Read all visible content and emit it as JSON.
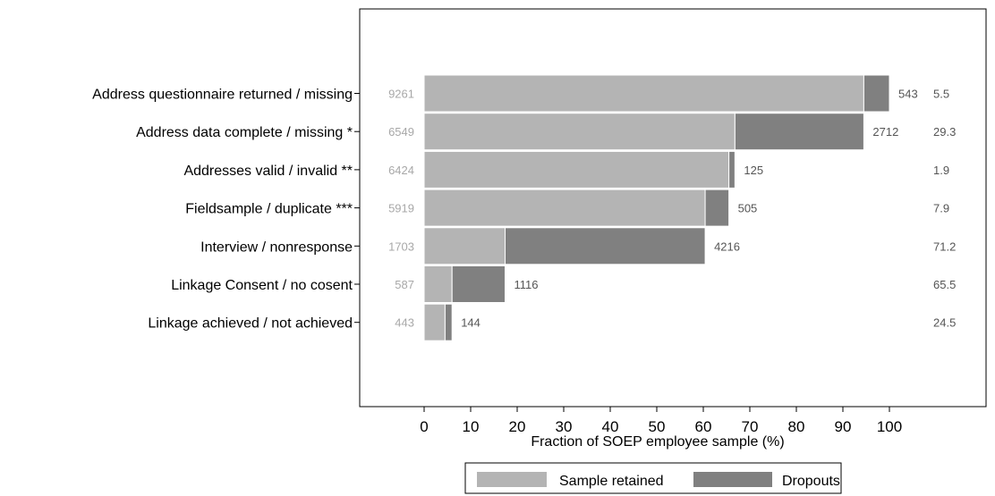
{
  "chart_data": {
    "type": "bar",
    "orientation": "horizontal",
    "stacked": true,
    "xlabel": "Fraction of SOEP employee sample (%)",
    "xlim": [
      0,
      100
    ],
    "xticks": [
      "0",
      "10",
      "20",
      "30",
      "40",
      "50",
      "60",
      "70",
      "80",
      "90",
      "100"
    ],
    "categories": [
      "Address questionnaire returned / missing",
      "Address data complete / missing *",
      "Addresses valid / invalid **",
      "Fieldsample / duplicate ***",
      "Interview / nonresponse",
      "Linkage Consent / no cosent",
      "Linkage achieved / not achieved"
    ],
    "series": [
      {
        "name": "Sample retained",
        "values": [
          94.5,
          66.8,
          65.5,
          60.4,
          17.4,
          6.0,
          4.5
        ]
      },
      {
        "name": "Dropouts",
        "values": [
          5.5,
          27.7,
          1.3,
          5.1,
          43.0,
          11.4,
          1.5
        ]
      }
    ],
    "retained_counts": [
      "9261",
      "6549",
      "6424",
      "5919",
      "1703",
      "587",
      "443"
    ],
    "dropout_counts": [
      "543",
      "2712",
      "125",
      "505",
      "4216",
      "1116",
      "144"
    ],
    "dropout_percent": [
      "5.5",
      "29.3",
      "1.9",
      "7.9",
      "71.2",
      "65.5",
      "24.5"
    ],
    "legend_position": "bottom",
    "grid": false,
    "colors": {
      "retained": "#b4b4b4",
      "dropouts": "#808080",
      "frame": "#000000"
    }
  }
}
